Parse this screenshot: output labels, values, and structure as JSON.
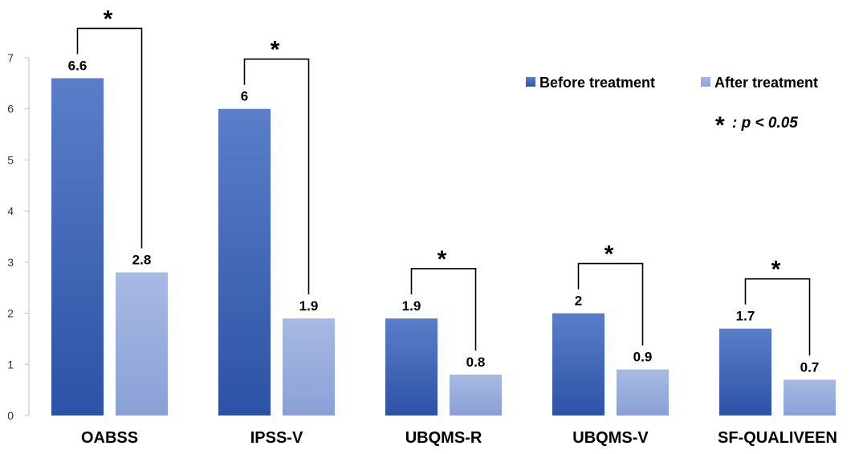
{
  "chart_data": {
    "type": "bar",
    "title": "",
    "xlabel": "",
    "ylabel": "",
    "ylim": [
      0,
      7
    ],
    "yticks": [
      "0",
      "1",
      "2",
      "3",
      "4",
      "5",
      "6",
      "7"
    ],
    "grid": false,
    "legend_position": "top-right",
    "categories": [
      "OABSS",
      "IPSS-V",
      "UBQMS-R",
      "UBQMS-V",
      "SF-QUALIVEEN"
    ],
    "series": [
      {
        "name": "Before treatment",
        "values": [
          6.6,
          6,
          1.9,
          2,
          1.7
        ],
        "labels": [
          "6.6",
          "6",
          "1.9",
          "2",
          "1.7"
        ],
        "color": "#3a62b8"
      },
      {
        "name": "After treatment",
        "values": [
          2.8,
          1.9,
          0.8,
          0.9,
          0.7
        ],
        "labels": [
          "2.8",
          "1.9",
          "0.8",
          "0.9",
          "0.7"
        ],
        "color": "#98acdc"
      }
    ],
    "significance_marker": "*",
    "significance_note": ": p < 0.05"
  }
}
